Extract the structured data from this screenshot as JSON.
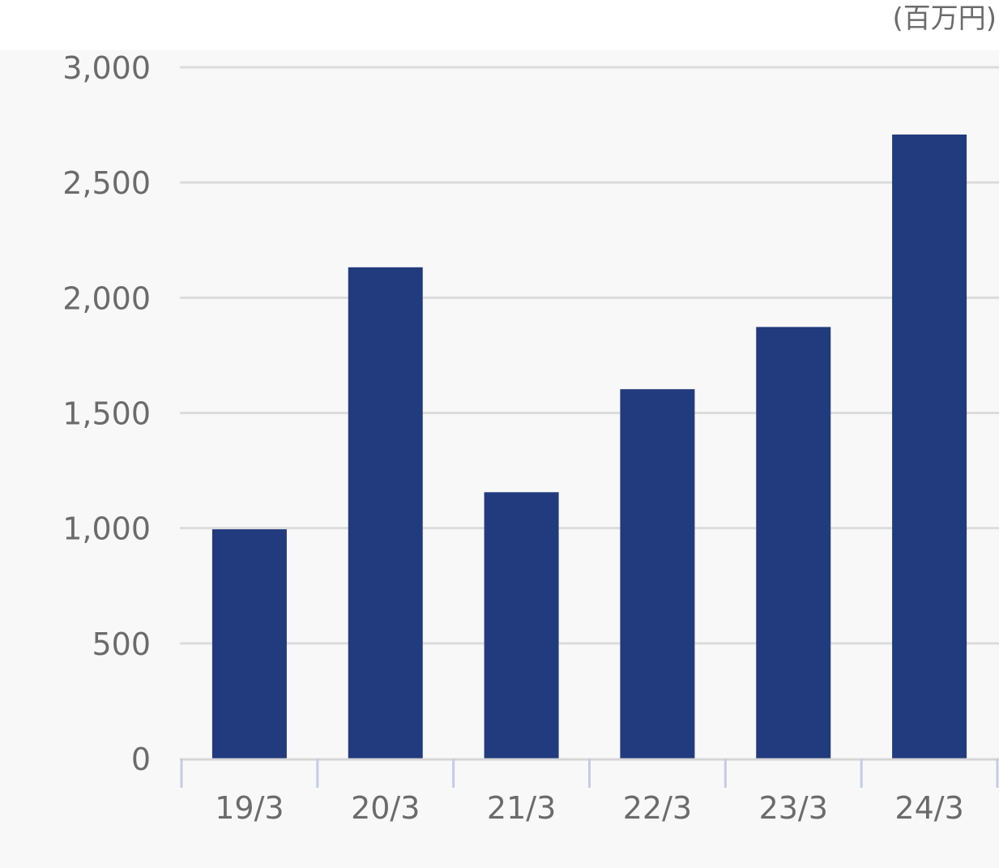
{
  "chart_data": {
    "type": "bar",
    "title": "",
    "unit_label": "(百万円)",
    "xlabel": "",
    "ylabel": "",
    "categories": [
      "19/3",
      "20/3",
      "21/3",
      "22/3",
      "23/3",
      "24/3"
    ],
    "values": [
      995,
      2132,
      1156,
      1603,
      1873,
      2708
    ],
    "ylim": [
      0,
      3000
    ],
    "yticks": [
      "0",
      "500",
      "1,000",
      "1,500",
      "2,000",
      "2,500",
      "3,000"
    ],
    "ytick_values": [
      0,
      500,
      1000,
      1500,
      2000,
      2500,
      3000
    ],
    "grid": true,
    "legend": "none",
    "colors": {
      "bar": "#223a7e",
      "grid": "#dcdcdc",
      "axis": "#c5cbe8",
      "background": "#f8f8f8",
      "text": "#6b6b6b"
    }
  }
}
